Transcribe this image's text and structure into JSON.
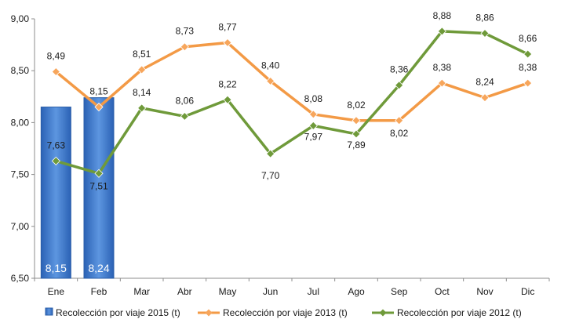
{
  "chart_data": {
    "type": "bar+line",
    "categories": [
      "Ene",
      "Feb",
      "Mar",
      "Abr",
      "May",
      "Jun",
      "Jul",
      "Ago",
      "Sep",
      "Oct",
      "Nov",
      "Dic"
    ],
    "ylim": [
      6.5,
      9.0
    ],
    "yticks": [
      "6,50",
      "7,00",
      "7,50",
      "8,00",
      "8,50",
      "9,00"
    ],
    "ytick_values": [
      6.5,
      7.0,
      7.5,
      8.0,
      8.5,
      9.0
    ],
    "grid": false,
    "legend_position": "bottom",
    "bar_series": {
      "name": "Recolección por viaje 2015 (t)",
      "color": "#3f7fd0",
      "values": [
        8.15,
        8.24
      ],
      "labels": [
        "8,15",
        "8,24"
      ]
    },
    "line_series": [
      {
        "name": "Recolección por viaje 2013 (t)",
        "color": "#f39a46",
        "marker_color": "#f7a65c",
        "values": [
          8.49,
          8.15,
          8.51,
          8.73,
          8.77,
          8.4,
          8.08,
          8.02,
          8.02,
          8.38,
          8.24,
          8.38
        ],
        "labels": [
          "8,49",
          "8,15",
          "8,51",
          "8,73",
          "8,77",
          "8,40",
          "8,08",
          "8,02",
          "8,02",
          "8,38",
          "8,24",
          "8,38"
        ]
      },
      {
        "name": "Recolección por viaje 2012 (t)",
        "color": "#6f9a3a",
        "marker_color": "#6f9a3a",
        "values": [
          7.63,
          7.51,
          8.14,
          8.06,
          8.22,
          7.7,
          7.97,
          7.89,
          8.36,
          8.88,
          8.86,
          8.66
        ],
        "labels": [
          "7,63",
          "7,51",
          "8,14",
          "8,06",
          "8,22",
          "7,70",
          "7,97",
          "7,89",
          "8,36",
          "8,88",
          "8,86",
          "8,66"
        ]
      }
    ]
  }
}
